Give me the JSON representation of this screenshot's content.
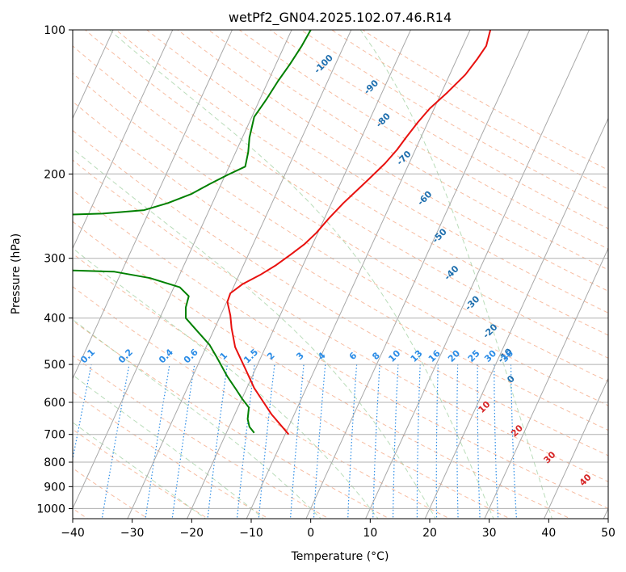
{
  "chart_data": {
    "type": "line",
    "title": "wetPf2_GN04.2025.102.07.46.R14",
    "xlabel": "Temperature (°C)",
    "ylabel": "Pressure (hPa)",
    "xlim": [
      -40,
      50
    ],
    "ylim": [
      1050,
      100
    ],
    "y_scale": "log",
    "x_ticks": [
      "−40",
      "−30",
      "−20",
      "−10",
      "0",
      "10",
      "20",
      "30",
      "40",
      "50"
    ],
    "y_ticks": [
      {
        "p": 100,
        "label": "100"
      },
      {
        "p": 200,
        "label": "200"
      },
      {
        "p": 300,
        "label": "300"
      },
      {
        "p": 400,
        "label": "400"
      },
      {
        "p": 500,
        "label": "500"
      },
      {
        "p": 600,
        "label": "600"
      },
      {
        "p": 700,
        "label": "700"
      },
      {
        "p": 800,
        "label": "800"
      },
      {
        "p": 900,
        "label": "900"
      },
      {
        "p": 1000,
        "label": "1000"
      }
    ],
    "grid": true,
    "background_lines": {
      "isotherms_skewed": [
        -130,
        -120,
        -110,
        -100,
        -90,
        -80,
        -70,
        -60,
        -50,
        -40,
        -30,
        -20,
        -10,
        0,
        10,
        20,
        30,
        40,
        50
      ],
      "dry_adiabats_theta_c": [
        -40,
        -30,
        -20,
        -10,
        0,
        10,
        20,
        30,
        40,
        50,
        60,
        70,
        80,
        90,
        100,
        110,
        120,
        130,
        140,
        150,
        160,
        170,
        180,
        190,
        200
      ],
      "moist_adiabats_c": [
        -20,
        -10,
        0,
        10,
        20,
        30,
        40
      ],
      "mixing_ratio_gkg": [
        0.1,
        0.2,
        0.4,
        0.6,
        1,
        1.5,
        2,
        3,
        4,
        6,
        8,
        10,
        13,
        16,
        20,
        25,
        30,
        36
      ]
    },
    "isotherm_labels": [
      {
        "text": "-100",
        "x": 2.5,
        "p": 119
      },
      {
        "text": "-90",
        "x": 10.5,
        "p": 133
      },
      {
        "text": "-80",
        "x": 12.5,
        "p": 156
      },
      {
        "text": "-70",
        "x": 16.0,
        "p": 187
      },
      {
        "text": "-60",
        "x": 19.5,
        "p": 227
      },
      {
        "text": "-50",
        "x": 22.0,
        "p": 272
      },
      {
        "text": "-40",
        "x": 24.0,
        "p": 325
      },
      {
        "text": "-30",
        "x": 27.5,
        "p": 376
      },
      {
        "text": "-20",
        "x": 30.5,
        "p": 430
      },
      {
        "text": "-10",
        "x": 33.0,
        "p": 484
      },
      {
        "text": "0",
        "x": 34.0,
        "p": 542
      }
    ],
    "mixing_ratio_labels": [
      "0.1",
      "0.2",
      "0.4",
      "0.6",
      "1",
      "1.5",
      "2",
      "3",
      "4",
      "6",
      "8",
      "10",
      "13",
      "16",
      "20",
      "25",
      "30",
      "36"
    ],
    "moist_adiabat_labels": [
      {
        "text": "10",
        "x": 29.5,
        "p": 620
      },
      {
        "text": "20",
        "x": 35.0,
        "p": 695
      },
      {
        "text": "30",
        "x": 40.5,
        "p": 790
      },
      {
        "text": "40",
        "x": 46.5,
        "p": 880
      }
    ],
    "series": [
      {
        "color": "#e8110f",
        "points": [
          [
            -3.7,
            700
          ],
          [
            -6.6,
            635
          ],
          [
            -9.5,
            560
          ],
          [
            -11,
            510
          ],
          [
            -12.7,
            460
          ],
          [
            -13.3,
            420
          ],
          [
            -13.5,
            395
          ],
          [
            -14,
            370
          ],
          [
            -13.5,
            355
          ],
          [
            -11.5,
            340
          ],
          [
            -8.5,
            325
          ],
          [
            -5.8,
            310
          ],
          [
            -3.4,
            295
          ],
          [
            -1,
            280
          ],
          [
            1,
            265
          ],
          [
            3,
            248
          ],
          [
            5.5,
            230
          ],
          [
            7.5,
            218
          ],
          [
            9.6,
            206
          ],
          [
            12.5,
            190
          ],
          [
            14.5,
            178
          ],
          [
            16,
            168
          ],
          [
            18,
            156
          ],
          [
            20,
            146
          ],
          [
            23,
            135
          ],
          [
            26,
            124
          ],
          [
            28,
            115
          ],
          [
            29.5,
            108
          ],
          [
            30.2,
            100
          ]
        ]
      },
      {
        "color": "#008000",
        "points": [
          [
            -9.5,
            695
          ],
          [
            -10.3,
            675
          ],
          [
            -10.6,
            650
          ],
          [
            -10.4,
            615
          ],
          [
            -11.5,
            590
          ],
          [
            -12.5,
            565
          ],
          [
            -14,
            530
          ],
          [
            -15.7,
            485
          ],
          [
            -17,
            455
          ],
          [
            -19.5,
            420
          ],
          [
            -21,
            400
          ],
          [
            -21,
            380
          ],
          [
            -20.5,
            360
          ],
          [
            -22,
            345
          ],
          [
            -27,
            330
          ],
          [
            -33,
            320
          ],
          [
            -40,
            318
          ],
          null,
          [
            -40,
            243
          ],
          [
            -35,
            242
          ],
          [
            -28,
            238
          ],
          [
            -24,
            230
          ],
          [
            -20,
            220
          ],
          [
            -17,
            210
          ],
          [
            -14,
            201
          ],
          [
            -11,
            193
          ],
          [
            -10.5,
            180
          ],
          [
            -10.3,
            168
          ],
          [
            -9.5,
            152
          ],
          [
            -7.5,
            140
          ],
          [
            -5.5,
            128
          ],
          [
            -3.5,
            118
          ],
          [
            -1.5,
            108
          ],
          [
            0,
            100
          ]
        ]
      }
    ]
  }
}
